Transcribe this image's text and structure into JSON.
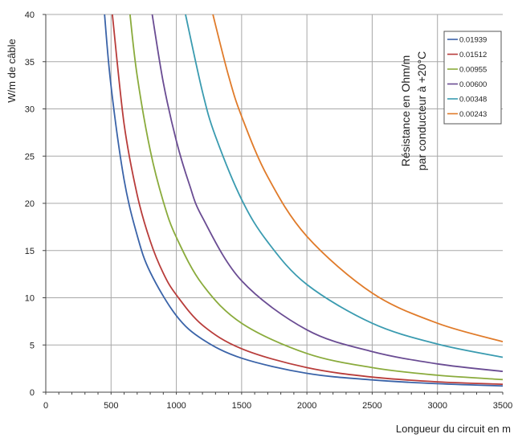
{
  "chart_data": {
    "type": "line",
    "xlabel": "Longueur du circuit en m",
    "ylabel": "W/m de câble",
    "xlim": [
      0,
      3500
    ],
    "ylim": [
      0,
      40
    ],
    "xticks": [
      0,
      500,
      1000,
      1500,
      2000,
      2500,
      3000,
      3500
    ],
    "yticks": [
      0,
      5,
      10,
      15,
      20,
      25,
      30,
      35,
      40
    ],
    "grid": true,
    "legend_position": "top-right",
    "legend_title": "Résistance en Ohm/m par conducteur à +20°C",
    "legend_title_lines": [
      "Résistance en Ohm/m",
      "par conducteur à +20°C"
    ],
    "series": [
      {
        "name": "0.01939",
        "color": "#3a63a8",
        "x": [
          450,
          500,
          600,
          700,
          800,
          1000,
          1200,
          1500,
          2000,
          2500,
          3000,
          3500
        ],
        "y": [
          40,
          32.4,
          22.5,
          16.6,
          12.7,
          8.1,
          5.6,
          3.6,
          2.0,
          1.3,
          0.9,
          0.66
        ]
      },
      {
        "name": "0.01512",
        "color": "#b83c3a",
        "x": [
          510,
          600,
          700,
          800,
          900,
          1000,
          1200,
          1500,
          2000,
          2500,
          3000,
          3500
        ],
        "y": [
          40,
          28.4,
          20.9,
          16.0,
          12.6,
          10.3,
          7.1,
          4.6,
          2.6,
          1.6,
          1.1,
          0.84
        ]
      },
      {
        "name": "0.00955",
        "color": "#8aab3c",
        "x": [
          645,
          700,
          800,
          900,
          1000,
          1200,
          1500,
          2000,
          2500,
          3000,
          3500
        ],
        "y": [
          40,
          33.5,
          25.6,
          20.2,
          16.4,
          11.4,
          7.3,
          4.1,
          2.6,
          1.8,
          1.34
        ]
      },
      {
        "name": "0.00600",
        "color": "#6a4c93",
        "x": [
          815,
          900,
          1000,
          1100,
          1200,
          1500,
          2000,
          2500,
          3000,
          3500
        ],
        "y": [
          40,
          32.8,
          26.6,
          22.0,
          18.5,
          11.8,
          6.6,
          4.3,
          3.0,
          2.2
        ]
      },
      {
        "name": "0.00348",
        "color": "#3a9bb0",
        "x": [
          1070,
          1200,
          1300,
          1500,
          1700,
          2000,
          2500,
          3000,
          3500
        ],
        "y": [
          40,
          31.8,
          27.1,
          20.4,
          15.9,
          11.4,
          7.3,
          5.1,
          3.7
        ]
      },
      {
        "name": "0.00243",
        "color": "#e07b2a",
        "x": [
          1280,
          1400,
          1500,
          1700,
          2000,
          2500,
          3000,
          3500
        ],
        "y": [
          40,
          33.5,
          29.2,
          22.8,
          16.5,
          10.5,
          7.3,
          5.35
        ]
      }
    ]
  }
}
